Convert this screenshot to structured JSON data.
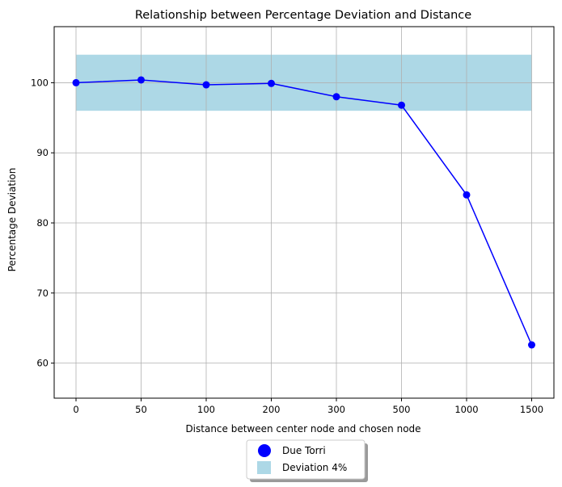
{
  "chart_data": {
    "type": "line",
    "title": "Relationship between Percentage Deviation and Distance",
    "xlabel": "Distance between center node and chosen node",
    "ylabel": "Percentage Deviation",
    "categories": [
      "0",
      "50",
      "100",
      "200",
      "300",
      "500",
      "1000",
      "1500"
    ],
    "series": [
      {
        "name": "Due Torri",
        "color": "#0000ff",
        "marker": "circle",
        "values": [
          100.0,
          100.4,
          99.7,
          99.9,
          98.0,
          96.8,
          84.0,
          62.6
        ]
      }
    ],
    "band": {
      "name": "Deviation 4%",
      "color": "#add8e6",
      "y_range": [
        96,
        104
      ],
      "x_range": [
        "0",
        "1500"
      ]
    },
    "ylim": [
      55,
      108
    ],
    "yticks": [
      60,
      70,
      80,
      90,
      100
    ],
    "grid": true,
    "legend": {
      "placement": "bottom-center",
      "entries": [
        "Due Torri",
        "Deviation 4%"
      ]
    }
  }
}
